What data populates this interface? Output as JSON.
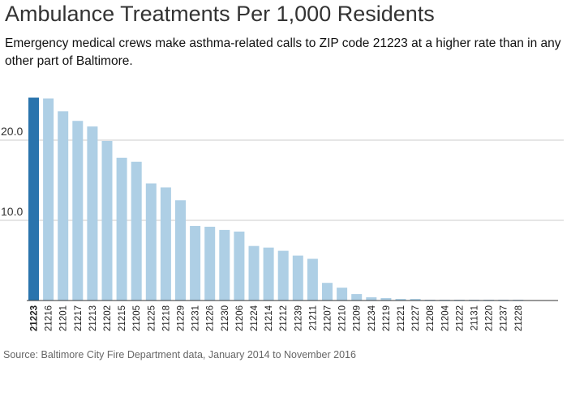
{
  "title": "Ambulance Treatments Per 1,000 Residents",
  "subtitle": "Emergency medical crews make asthma-related calls to ZIP code 21223 at a higher rate than in any other part of Baltimore.",
  "source": "Source: Baltimore City Fire Department data, January 2014 to November 2016",
  "colors": {
    "highlight": "#2a74ad",
    "bar": "#aecfe5",
    "grid": "#cccccc",
    "axis": "#333333"
  },
  "chart_data": {
    "type": "bar",
    "title": "Ambulance Treatments Per 1,000 Residents",
    "xlabel": "",
    "ylabel": "",
    "ylim": [
      0,
      26
    ],
    "yticks": [
      10,
      20
    ],
    "ytick_labels": [
      "10.0",
      "20.0"
    ],
    "grid": true,
    "highlight_category": "21223",
    "categories": [
      "21223",
      "21216",
      "21201",
      "21217",
      "21213",
      "21202",
      "21215",
      "21205",
      "21225",
      "21218",
      "21229",
      "21231",
      "21226",
      "21230",
      "21206",
      "21224",
      "21214",
      "21212",
      "21239",
      "21211",
      "21207",
      "21210",
      "21209",
      "21234",
      "21219",
      "21221",
      "21227",
      "21208",
      "21204",
      "21222",
      "21131",
      "21220",
      "21237",
      "21228"
    ],
    "values": [
      25.3,
      25.2,
      23.6,
      22.4,
      21.7,
      19.9,
      17.8,
      17.3,
      14.6,
      14.1,
      12.5,
      9.3,
      9.2,
      8.8,
      8.6,
      6.8,
      6.6,
      6.2,
      5.6,
      5.2,
      2.2,
      1.6,
      0.8,
      0.4,
      0.3,
      0.2,
      0.2,
      0.1,
      0.1,
      0.1,
      0.1,
      0.1,
      0.1,
      0.1
    ]
  }
}
